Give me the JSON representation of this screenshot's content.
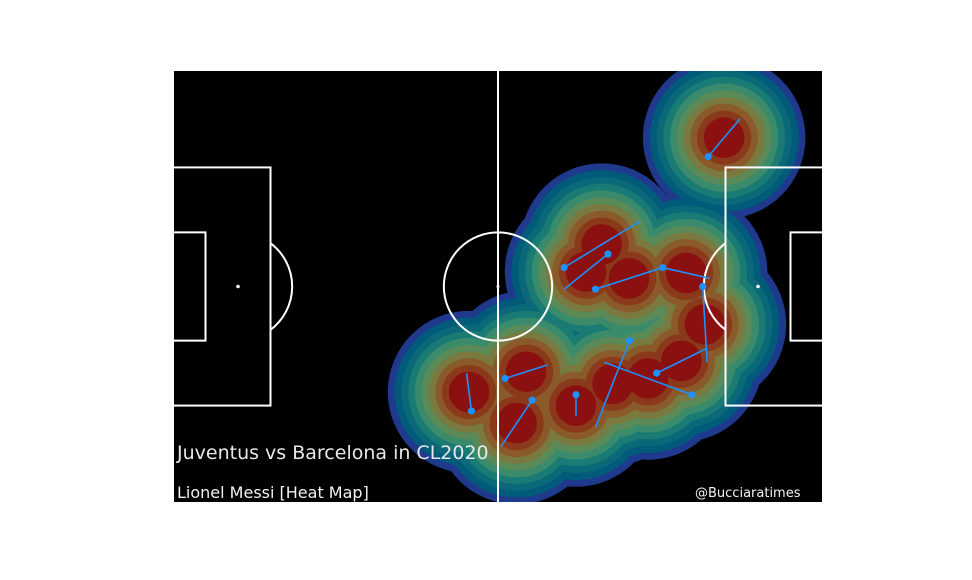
{
  "title": "Juventus vs Barcelona in CL2020",
  "subtitle": "Lionel Messi [Heat Map]",
  "credit": "@Bucciaratimes",
  "colors": {
    "background": "#000000",
    "lines": "#ffffff",
    "pass": "#1e90ff",
    "heat_levels": [
      "#1f3a8c",
      "#005a7a",
      "#0a6878",
      "#1a7a74",
      "#3a8a6c",
      "#5a8a58",
      "#7a7a40",
      "#8a5a2a",
      "#8a3a1a",
      "#8b1010"
    ]
  },
  "chart_data": {
    "type": "heatmap",
    "x_range": [
      0,
      120
    ],
    "y_range": [
      0,
      80
    ],
    "events": [
      {
        "x": 98.8,
        "y": 64.0,
        "end_x": 104.7,
        "end_y": 71.0
      },
      {
        "x": 72.2,
        "y": 43.5,
        "end_x": 86.1,
        "end_y": 52.0
      },
      {
        "x": 80.3,
        "y": 46.0,
        "end_x": 72.2,
        "end_y": 39.5
      },
      {
        "x": 78.0,
        "y": 39.5,
        "end_x": 90.4,
        "end_y": 43.5
      },
      {
        "x": 90.4,
        "y": 43.5,
        "end_x": 99.1,
        "end_y": 41.5
      },
      {
        "x": 97.8,
        "y": 40.0,
        "end_x": 98.6,
        "end_y": 26.0
      },
      {
        "x": 84.3,
        "y": 30.0,
        "end_x": 78.0,
        "end_y": 14.0
      },
      {
        "x": 61.3,
        "y": 23.0,
        "end_x": 69.1,
        "end_y": 25.5
      },
      {
        "x": 66.3,
        "y": 19.0,
        "end_x": 60.6,
        "end_y": 10.5
      },
      {
        "x": 74.4,
        "y": 20.0,
        "end_x": 74.4,
        "end_y": 16.0
      },
      {
        "x": 55.1,
        "y": 17.0,
        "end_x": 54.2,
        "end_y": 24.0
      },
      {
        "x": 89.3,
        "y": 24.0,
        "end_x": 98.4,
        "end_y": 28.5
      },
      {
        "x": 95.8,
        "y": 20.0,
        "end_x": 79.6,
        "end_y": 26.0
      }
    ]
  }
}
